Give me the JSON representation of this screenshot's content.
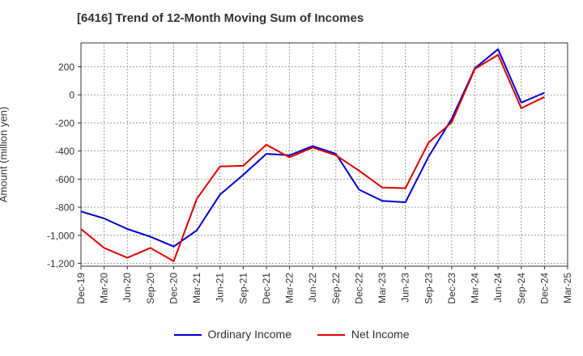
{
  "title": "[6416]  Trend of 12-Month Moving Sum of Incomes",
  "chart_data": {
    "type": "line",
    "title": "[6416]  Trend of 12-Month Moving Sum of Incomes",
    "xlabel": "",
    "ylabel": "Amount (million yen)",
    "categories": [
      "Dec-19",
      "Mar-20",
      "Jun-20",
      "Sep-20",
      "Dec-20",
      "Mar-21",
      "Jun-21",
      "Sep-21",
      "Dec-21",
      "Mar-22",
      "Jun-22",
      "Sep-22",
      "Dec-22",
      "Mar-23",
      "Jun-23",
      "Sep-23",
      "Dec-23",
      "Mar-24",
      "Jun-24",
      "Sep-24",
      "Dec-24",
      "Mar-25"
    ],
    "ylim": [
      -1220,
      370
    ],
    "yticks": [
      200,
      0,
      -200,
      -400,
      -600,
      -800,
      -1000,
      -1200
    ],
    "ytick_labels": [
      "200",
      "0",
      "-200",
      "-400",
      "-600",
      "-800",
      "-1,000",
      "-1,200"
    ],
    "grid": true,
    "legend_position": "bottom",
    "series": [
      {
        "name": "Ordinary Income",
        "color": "#0000cc",
        "values": [
          -830,
          -880,
          -955,
          -1010,
          -1080,
          -965,
          -710,
          -570,
          -420,
          -430,
          -365,
          -420,
          -675,
          -755,
          -765,
          -440,
          -170,
          190,
          325,
          -55,
          15,
          null
        ]
      },
      {
        "name": "Net Income",
        "color": "#dd0000",
        "values": [
          -955,
          -1090,
          -1160,
          -1090,
          -1185,
          -740,
          -510,
          -505,
          -355,
          -445,
          -375,
          -430,
          -540,
          -660,
          -665,
          -340,
          -195,
          185,
          285,
          -95,
          -15,
          null
        ]
      }
    ]
  }
}
